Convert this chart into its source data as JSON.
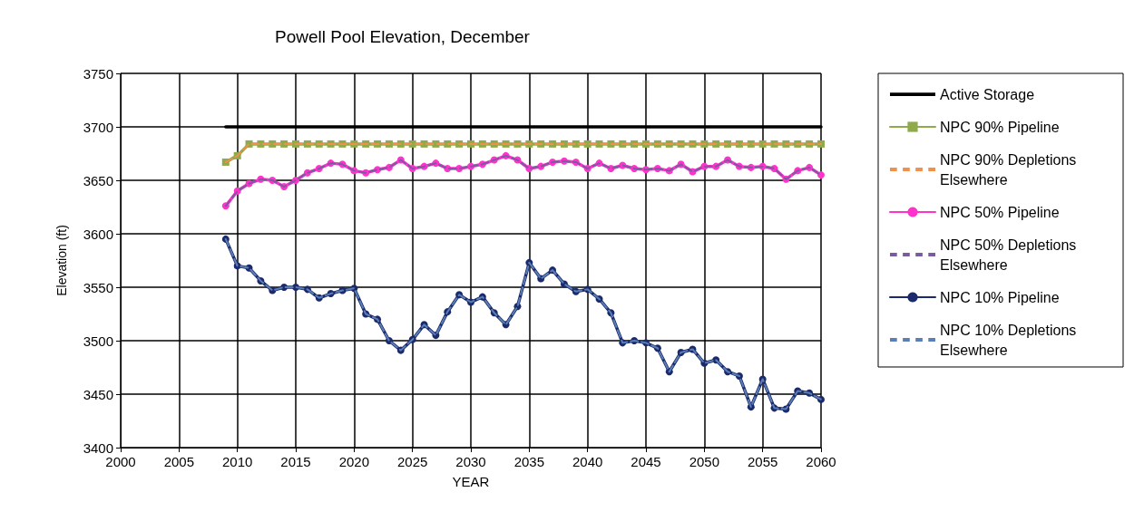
{
  "chart_data": {
    "type": "line",
    "title": "Powell Pool Elevation, December",
    "xlabel": "YEAR",
    "ylabel": "Elevation (ft)",
    "xlim": [
      2000,
      2060
    ],
    "xticks": [
      2000,
      2005,
      2010,
      2015,
      2020,
      2025,
      2030,
      2035,
      2040,
      2045,
      2050,
      2055,
      2060
    ],
    "ylim": [
      3400,
      3750
    ],
    "yticks": [
      3400,
      3450,
      3500,
      3550,
      3600,
      3650,
      3700,
      3750
    ],
    "grid": true,
    "legend": "right",
    "x": [
      2009,
      2010,
      2011,
      2012,
      2013,
      2014,
      2015,
      2016,
      2017,
      2018,
      2019,
      2020,
      2021,
      2022,
      2023,
      2024,
      2025,
      2026,
      2027,
      2028,
      2029,
      2030,
      2031,
      2032,
      2033,
      2034,
      2035,
      2036,
      2037,
      2038,
      2039,
      2040,
      2041,
      2042,
      2043,
      2044,
      2045,
      2046,
      2047,
      2048,
      2049,
      2050,
      2051,
      2052,
      2053,
      2054,
      2055,
      2056,
      2057,
      2058,
      2059,
      2060
    ],
    "series": [
      {
        "name": "Active Storage",
        "color": "#000000",
        "marker": "none",
        "line_style": "solid",
        "x": [
          2009,
          2060
        ],
        "values": [
          3700,
          3700
        ]
      },
      {
        "name": "NPC 90% Pipeline",
        "color": "#8faa4a",
        "marker": "square",
        "line_style": "solid",
        "values": [
          3667,
          3673,
          3684,
          3684,
          3684,
          3684,
          3684,
          3684,
          3684,
          3684,
          3684,
          3684,
          3684,
          3684,
          3684,
          3684,
          3684,
          3684,
          3684,
          3684,
          3684,
          3684,
          3684,
          3684,
          3684,
          3684,
          3684,
          3684,
          3684,
          3684,
          3684,
          3684,
          3684,
          3684,
          3684,
          3684,
          3684,
          3684,
          3684,
          3684,
          3684,
          3684,
          3684,
          3684,
          3684,
          3684,
          3684,
          3684,
          3684,
          3684,
          3684,
          3684
        ]
      },
      {
        "name": "NPC 90% Depletions Elsewhere",
        "color": "#f0904a",
        "marker": "none",
        "line_style": "dashed",
        "values": [
          3667,
          3673,
          3684,
          3684,
          3684,
          3684,
          3684,
          3684,
          3684,
          3684,
          3684,
          3684,
          3684,
          3684,
          3684,
          3684,
          3684,
          3684,
          3684,
          3684,
          3684,
          3684,
          3684,
          3684,
          3684,
          3684,
          3684,
          3684,
          3684,
          3684,
          3684,
          3684,
          3684,
          3684,
          3684,
          3684,
          3684,
          3684,
          3684,
          3684,
          3684,
          3684,
          3684,
          3684,
          3684,
          3684,
          3684,
          3684,
          3684,
          3684,
          3684,
          3684
        ]
      },
      {
        "name": "NPC 50% Pipeline",
        "color": "#ff33cc",
        "marker": "circle",
        "line_style": "solid",
        "values": [
          3626,
          3640,
          3647,
          3651,
          3650,
          3644,
          3650,
          3657,
          3661,
          3666,
          3665,
          3659,
          3657,
          3660,
          3662,
          3669,
          3661,
          3663,
          3666,
          3661,
          3661,
          3663,
          3665,
          3669,
          3673,
          3669,
          3661,
          3663,
          3667,
          3668,
          3667,
          3661,
          3666,
          3661,
          3664,
          3661,
          3660,
          3661,
          3659,
          3665,
          3658,
          3663,
          3663,
          3669,
          3663,
          3662,
          3663,
          3661,
          3651,
          3659,
          3662,
          3655
        ]
      },
      {
        "name": "NPC 50% Depletions Elsewhere",
        "color": "#7a5aa0",
        "marker": "none",
        "line_style": "dashed",
        "values": [
          3626,
          3640,
          3647,
          3651,
          3650,
          3644,
          3650,
          3657,
          3661,
          3666,
          3665,
          3659,
          3657,
          3660,
          3662,
          3669,
          3661,
          3663,
          3666,
          3661,
          3661,
          3663,
          3665,
          3669,
          3673,
          3669,
          3661,
          3663,
          3667,
          3668,
          3667,
          3661,
          3666,
          3661,
          3664,
          3661,
          3660,
          3661,
          3659,
          3665,
          3658,
          3663,
          3663,
          3669,
          3663,
          3662,
          3663,
          3661,
          3651,
          3659,
          3662,
          3655
        ]
      },
      {
        "name": "NPC 10% Pipeline",
        "color": "#1a2a6c",
        "marker": "circle",
        "line_style": "solid",
        "values": [
          3595,
          3570,
          3568,
          3556,
          3547,
          3550,
          3550,
          3548,
          3540,
          3544,
          3547,
          3549,
          3525,
          3520,
          3500,
          3491,
          3501,
          3515,
          3505,
          3527,
          3543,
          3536,
          3541,
          3526,
          3515,
          3532,
          3573,
          3558,
          3566,
          3553,
          3546,
          3548,
          3539,
          3526,
          3498,
          3500,
          3498,
          3493,
          3471,
          3489,
          3492,
          3479,
          3482,
          3471,
          3467,
          3438,
          3464,
          3437,
          3436,
          3453,
          3451,
          3445
        ]
      },
      {
        "name": "NPC 10% Depletions Elsewhere",
        "color": "#5b7fb5",
        "marker": "none",
        "line_style": "dashed",
        "values": [
          3595,
          3570,
          3568,
          3556,
          3547,
          3550,
          3550,
          3548,
          3540,
          3544,
          3547,
          3549,
          3525,
          3520,
          3500,
          3491,
          3501,
          3515,
          3505,
          3527,
          3543,
          3536,
          3541,
          3526,
          3515,
          3532,
          3573,
          3558,
          3566,
          3553,
          3546,
          3548,
          3539,
          3526,
          3498,
          3500,
          3498,
          3493,
          3471,
          3489,
          3492,
          3479,
          3482,
          3471,
          3467,
          3438,
          3464,
          3437,
          3436,
          3453,
          3451,
          3445
        ]
      }
    ]
  }
}
